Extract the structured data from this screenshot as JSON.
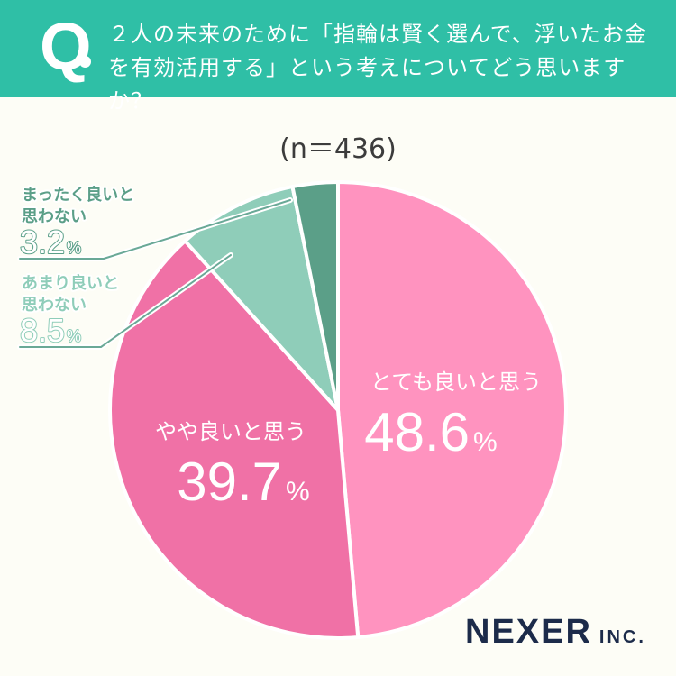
{
  "question": {
    "mark": "Q",
    "text": "２人の未来のために「指輪は賢く選んで、浮いたお金を有効活用する」という考えについてどう思いますか？"
  },
  "sample_size": "(n＝436)",
  "brand": {
    "name": "NEXER",
    "suffix": "INC."
  },
  "colors": {
    "header": "#2fbfa6",
    "very_good": "#ff93bf",
    "somewhat_good": "#f071a6",
    "somewhat_not": "#8fcdb9",
    "not_at_all": "#5b9f88"
  },
  "chart_data": {
    "type": "pie",
    "title": "２人の未来のために「指輪は賢く選んで、浮いたお金を有効活用する」という考えについてどう思いますか？",
    "subtitle": "(n＝436)",
    "start": "12 o'clock",
    "direction": "clockwise",
    "slices": [
      {
        "label": "とても良いと思う",
        "value": 48.6,
        "display": "48.6",
        "unit": "%",
        "color": "#ff93bf"
      },
      {
        "label": "やや良いと思う",
        "value": 39.7,
        "display": "39.7",
        "unit": "%",
        "color": "#f071a6"
      },
      {
        "label": "あまり良いと思わない",
        "value": 8.5,
        "display": "8.5",
        "unit": "%",
        "color": "#8fcdb9"
      },
      {
        "label": "まったく良いと思わない",
        "value": 3.2,
        "display": "3.2",
        "unit": "%",
        "color": "#5b9f88"
      }
    ]
  }
}
